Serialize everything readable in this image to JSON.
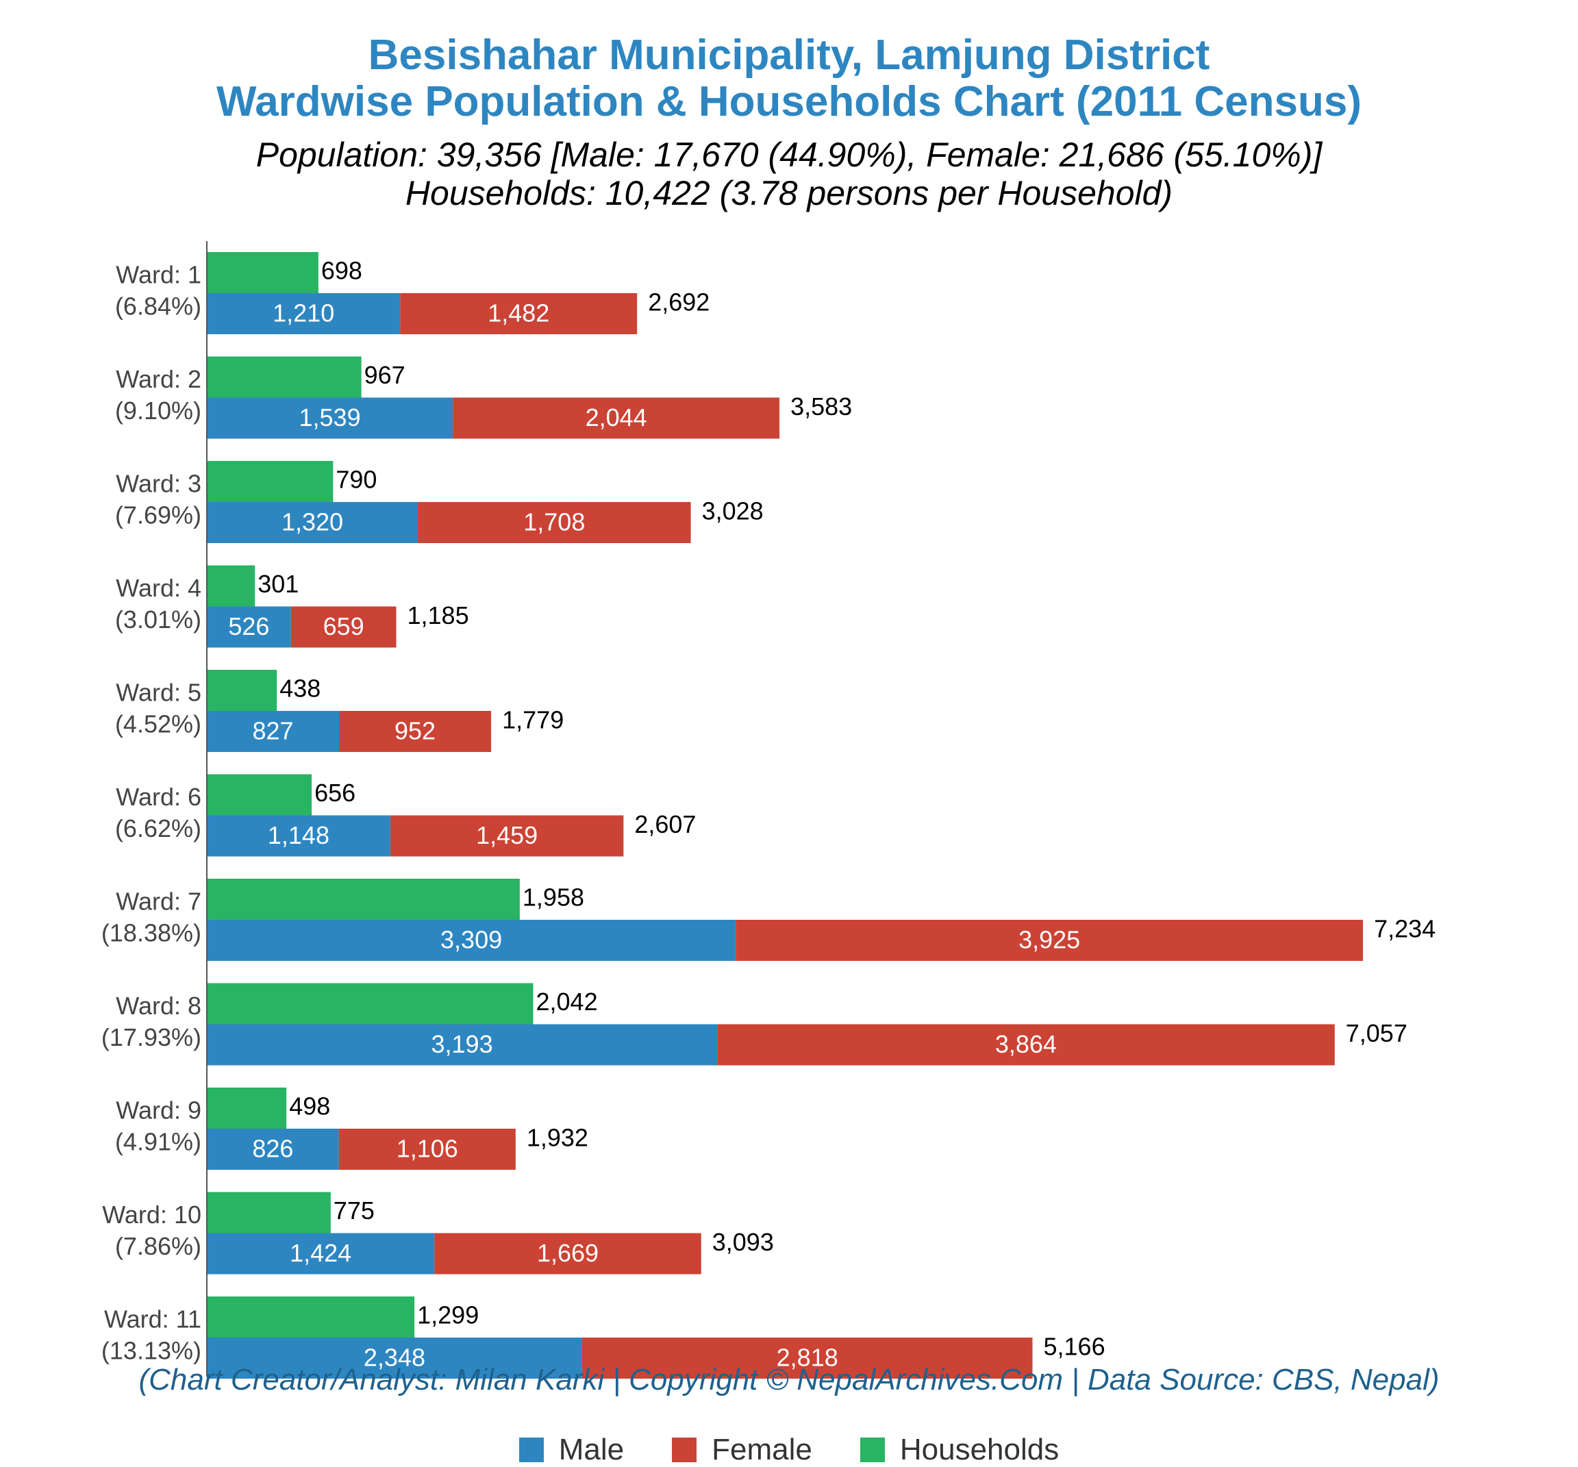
{
  "title_line1": "Besishahar Municipality, Lamjung District",
  "title_line2": "Wardwise Population & Households Chart (2011 Census)",
  "subtitle_line1": "Population: 39,356 [Male: 17,670 (44.90%), Female: 21,686 (55.10%)]",
  "subtitle_line2": "Households: 10,422 (3.78 persons per Household)",
  "credit": "(Chart Creator/Analyst: Milan Karki | Copyright © NepalArchives.Com | Data Source: CBS, Nepal)",
  "colors": {
    "male": "#2e86c1",
    "female": "#cb4335",
    "households": "#28b463",
    "title": "#2e86c1"
  },
  "legend": [
    {
      "label": "Male",
      "color": "#2e86c1"
    },
    {
      "label": "Female",
      "color": "#cb4335"
    },
    {
      "label": "Households",
      "color": "#28b463"
    }
  ],
  "chart_data": {
    "type": "bar",
    "orientation": "horizontal",
    "stacked_population": true,
    "legend_position": "bottom",
    "grid": false,
    "xlim": [
      0,
      7800
    ],
    "categories": [
      "Ward: 1",
      "Ward: 2",
      "Ward: 3",
      "Ward: 4",
      "Ward: 5",
      "Ward: 6",
      "Ward: 7",
      "Ward: 8",
      "Ward: 9",
      "Ward: 10",
      "Ward: 11"
    ],
    "category_percentages": [
      "(6.84%)",
      "(9.10%)",
      "(7.69%)",
      "(3.01%)",
      "(4.52%)",
      "(6.62%)",
      "(18.38%)",
      "(17.93%)",
      "(4.91%)",
      "(7.86%)",
      "(13.13%)"
    ],
    "series": [
      {
        "name": "Male",
        "values": [
          1210,
          1539,
          1320,
          526,
          827,
          1148,
          3309,
          3193,
          826,
          1424,
          2348
        ]
      },
      {
        "name": "Female",
        "values": [
          1482,
          2044,
          1708,
          659,
          952,
          1459,
          3925,
          3864,
          1106,
          1669,
          2818
        ]
      },
      {
        "name": "Households",
        "values": [
          698,
          967,
          790,
          301,
          438,
          656,
          1958,
          2042,
          498,
          775,
          1299
        ]
      }
    ],
    "totals": [
      2692,
      3583,
      3028,
      1185,
      1779,
      2607,
      7234,
      7057,
      1932,
      3093,
      5166
    ]
  }
}
